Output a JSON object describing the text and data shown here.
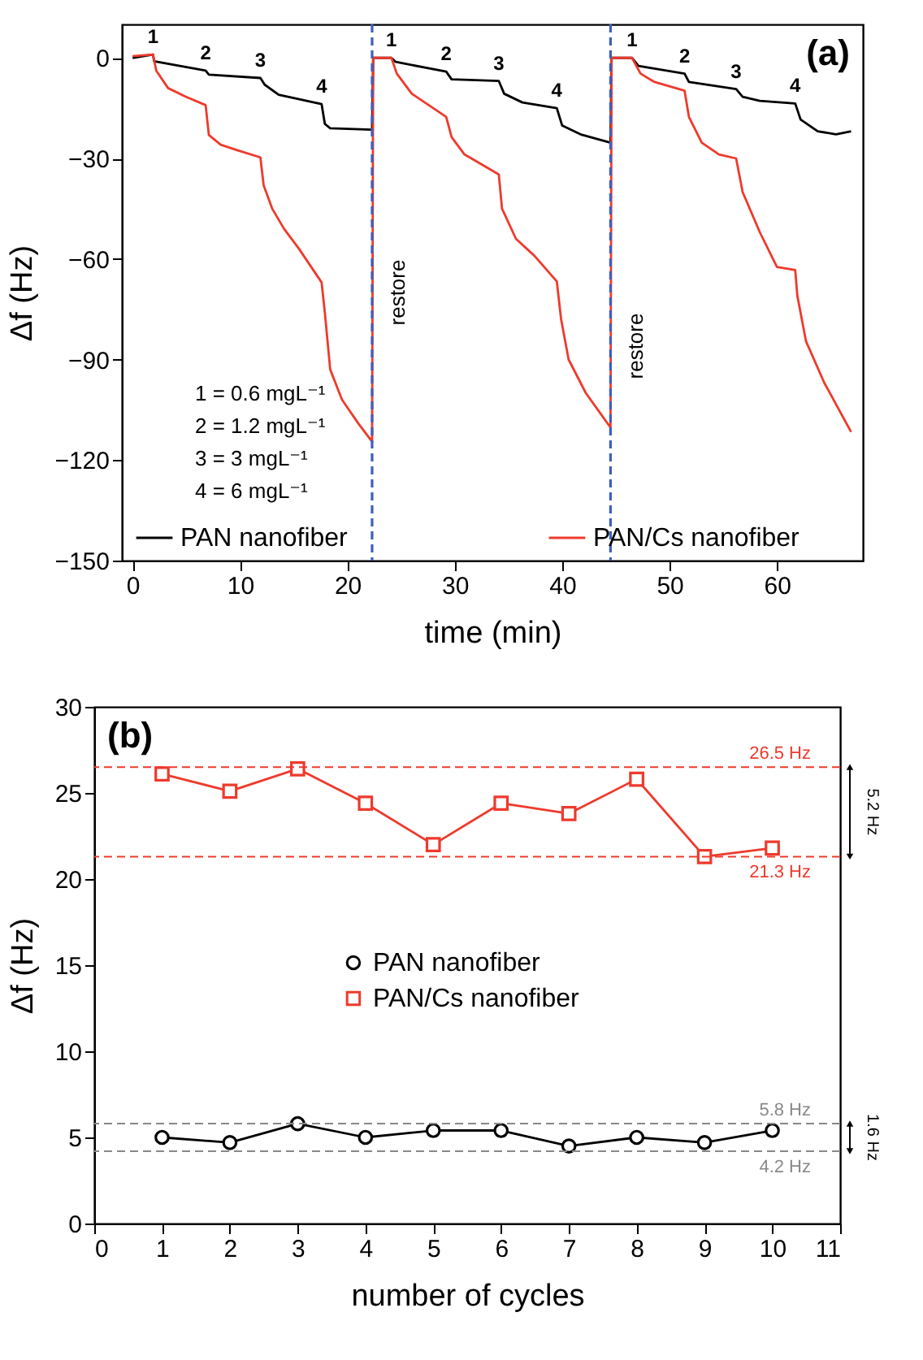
{
  "chart_data": [
    {
      "type": "line",
      "xlabel": "time (min)",
      "ylabel": "Δf (Hz)",
      "xlim": [
        -1,
        68
      ],
      "ylim": [
        -150,
        10
      ],
      "xticks": [
        0,
        10,
        20,
        30,
        40,
        50,
        60
      ],
      "yticks": [
        0,
        -30,
        -60,
        -90,
        -120,
        -150
      ],
      "legend": "bottom",
      "marker": "none",
      "series": [
        {
          "name": "PAN nanofiber",
          "color": "#000000",
          "x": [
            0,
            1.9,
            2.0,
            6.8,
            7.1,
            11.9,
            12.3,
            13.6,
            17.6,
            17.9,
            18.4,
            22.3,
            22.4,
            24.1,
            24.5,
            29.2,
            29.7,
            34.1,
            34.6,
            36.3,
            39.5,
            40,
            41.7,
            44.5,
            44.6,
            46.5,
            47.1,
            51.4,
            51.8,
            56.2,
            56.8,
            58.4,
            61.7,
            62.2,
            63.8,
            65.5,
            66.9
          ],
          "values": [
            0,
            1,
            -1,
            -3.8,
            -5,
            -6,
            -8,
            -11,
            -13.8,
            -19.7,
            -21,
            -21.4,
            0,
            0,
            -1.2,
            -4.1,
            -6.4,
            -6.9,
            -10.7,
            -13.3,
            -15,
            -20.2,
            -22.8,
            -25.3,
            0,
            0,
            -2.4,
            -4.7,
            -7.2,
            -9.3,
            -11.6,
            -12.8,
            -13.6,
            -18.4,
            -21.9,
            -22.8,
            -21.9
          ]
        },
        {
          "name": "PAN/Cs nanofiber",
          "color": "#ee3a2c",
          "x": [
            0,
            1.9,
            2.2,
            3.3,
            4.9,
            6.8,
            7.1,
            8.2,
            9.8,
            11.9,
            12.2,
            13,
            14.1,
            15.5,
            17.6,
            17.9,
            18.4,
            19.5,
            21,
            22.3,
            22.4,
            24.1,
            24.6,
            26,
            29.2,
            29.7,
            30.9,
            34.1,
            34.4,
            35.7,
            37.4,
            39.5,
            39.9,
            40.6,
            42.2,
            44.5,
            44.6,
            46.5,
            47.3,
            48.6,
            51.4,
            51.8,
            53,
            54.6,
            56.2,
            56.8,
            58.4,
            60,
            61.7,
            61.9,
            62.7,
            64.4,
            66.9
          ],
          "values": [
            0.5,
            1,
            -3.8,
            -9,
            -11.5,
            -14.1,
            -23,
            -25.9,
            -27.6,
            -29.7,
            -38,
            -45,
            -51,
            -57,
            -67,
            -76,
            -93,
            -102,
            -109,
            -114.5,
            0,
            0,
            -4.7,
            -10.7,
            -17.6,
            -23.6,
            -28.8,
            -34.8,
            -45,
            -54,
            -59,
            -66.7,
            -78,
            -90,
            -100,
            -110.3,
            0,
            0,
            -4.7,
            -7.2,
            -9.8,
            -17.6,
            -25.3,
            -28.8,
            -30,
            -40,
            -52,
            -62.4,
            -63.3,
            -71,
            -84.5,
            -96.9,
            -111.6
          ]
        }
      ],
      "ref_lines": [
        {
          "axis": "x",
          "value": 22.3,
          "label": "restore",
          "color": "#3f5fbf",
          "line_style": "dashed"
        },
        {
          "axis": "x",
          "value": 44.5,
          "label": "restore",
          "color": "#3f5fbf",
          "line_style": "dashed"
        }
      ],
      "annotations": [
        "(a)",
        "1 = 0.6 mgL⁻¹",
        "2 = 1.2 mgL⁻¹",
        "3 =    3 mgL⁻¹",
        "4 =    6 mgL⁻¹",
        {
          "text": "1",
          "x": 1.9,
          "y": 1
        },
        {
          "text": "2",
          "x": 6.8,
          "y": -3.8
        },
        {
          "text": "3",
          "x": 11.9,
          "y": -6
        },
        {
          "text": "4",
          "x": 17.6,
          "y": -13.8
        },
        {
          "text": "1",
          "x": 24.1,
          "y": 0
        },
        {
          "text": "2",
          "x": 29.2,
          "y": -4.1
        },
        {
          "text": "3",
          "x": 34.1,
          "y": -6.9
        },
        {
          "text": "4",
          "x": 39.5,
          "y": -15
        },
        {
          "text": "1",
          "x": 46.5,
          "y": 0
        },
        {
          "text": "2",
          "x": 51.4,
          "y": -4.7
        },
        {
          "text": "3",
          "x": 56.2,
          "y": -9.3
        },
        {
          "text": "4",
          "x": 61.7,
          "y": -13.6
        }
      ]
    },
    {
      "type": "line",
      "xlabel": "number of cycles",
      "ylabel": "Δf (Hz)",
      "xlim": [
        0,
        11
      ],
      "ylim": [
        0,
        30
      ],
      "xticks": [
        0,
        1,
        2,
        3,
        4,
        5,
        6,
        7,
        8,
        9,
        10,
        11
      ],
      "yticks": [
        0,
        5,
        10,
        15,
        20,
        25,
        30
      ],
      "legend": "center",
      "x": [
        1,
        2,
        3,
        4,
        5,
        6,
        7,
        8,
        9,
        10
      ],
      "series": [
        {
          "name": "PAN nanofiber",
          "color": "#000000",
          "marker": "circle",
          "values": [
            5.0,
            4.7,
            5.8,
            5.0,
            5.4,
            5.4,
            4.5,
            5.0,
            4.7,
            5.4
          ]
        },
        {
          "name": "PAN/Cs nanofiber",
          "color": "#ee3a2c",
          "marker": "square",
          "values": [
            26.1,
            25.1,
            26.4,
            24.4,
            22.0,
            24.4,
            23.8,
            25.8,
            21.3,
            21.8
          ]
        }
      ],
      "ref_lines": [
        {
          "axis": "y",
          "value": 26.5,
          "label": "26.5 Hz",
          "color": "#ee3a2c",
          "line_style": "dashed"
        },
        {
          "axis": "y",
          "value": 21.3,
          "label": "21.3 Hz",
          "color": "#ee3a2c",
          "line_style": "dashed"
        },
        {
          "axis": "y",
          "value": 5.8,
          "label": "5.8 Hz",
          "color": "#888888",
          "line_style": "dashed"
        },
        {
          "axis": "y",
          "value": 4.2,
          "label": "4.2 Hz",
          "color": "#888888",
          "line_style": "dashed"
        }
      ],
      "annotations": [
        "(b)",
        "5.2 Hz",
        "1.6 Hz"
      ]
    }
  ]
}
